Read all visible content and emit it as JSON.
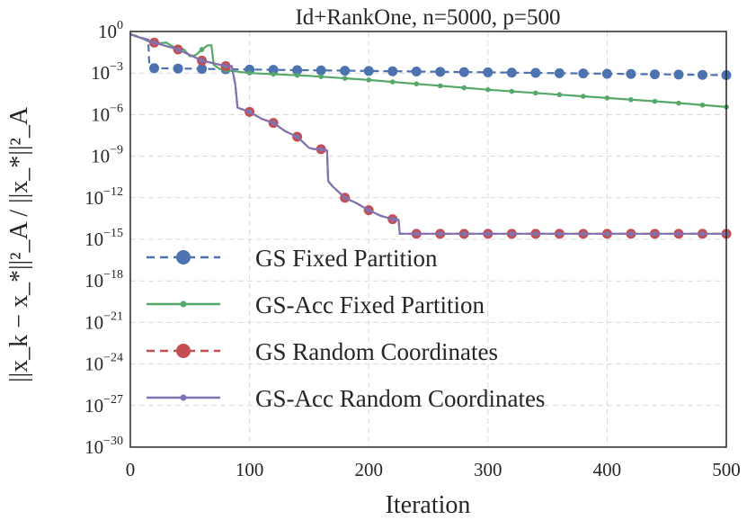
{
  "chart_data": {
    "type": "line",
    "title": "Id+RankOne, n=5000, p=500",
    "xlabel": "Iteration",
    "ylabel": "||x_k − x_*||²_A / ||x_*||²_A",
    "yscale": "log",
    "xlim": [
      0,
      500
    ],
    "ylim_exponent": [
      -30,
      0
    ],
    "grid": true,
    "legend_position": "lower-left",
    "x_ticks": [
      {
        "value": 0,
        "label": "0"
      },
      {
        "value": 100,
        "label": "100"
      },
      {
        "value": 200,
        "label": "200"
      },
      {
        "value": 300,
        "label": "300"
      },
      {
        "value": 400,
        "label": "400"
      },
      {
        "value": 500,
        "label": "500"
      }
    ],
    "y_ticks": [
      {
        "exp": 0,
        "base": "10",
        "sup": "0"
      },
      {
        "exp": -3,
        "base": "10",
        "sup": "−3"
      },
      {
        "exp": -6,
        "base": "10",
        "sup": "−6"
      },
      {
        "exp": -9,
        "base": "10",
        "sup": "−9"
      },
      {
        "exp": -12,
        "base": "10",
        "sup": "−12"
      },
      {
        "exp": -15,
        "base": "10",
        "sup": "−15"
      },
      {
        "exp": -18,
        "base": "10",
        "sup": "−18"
      },
      {
        "exp": -21,
        "base": "10",
        "sup": "−21"
      },
      {
        "exp": -24,
        "base": "10",
        "sup": "−24"
      },
      {
        "exp": -27,
        "base": "10",
        "sup": "−27"
      },
      {
        "exp": -30,
        "base": "10",
        "sup": "−30"
      }
    ],
    "series": [
      {
        "name": "GS Fixed Partition",
        "color": "#4c72b0",
        "style": "dashed",
        "marker": "large-circle",
        "marker_every": 20,
        "x": [
          0,
          15,
          16,
          20,
          100,
          300,
          500
        ],
        "log10y": [
          -0.2,
          -0.6,
          -2.6,
          -2.65,
          -2.75,
          -2.95,
          -3.15
        ]
      },
      {
        "name": "GS-Acc Fixed Partition",
        "color": "#55a868",
        "style": "solid",
        "marker": "small-circle",
        "marker_every": 20,
        "x": [
          0,
          10,
          20,
          30,
          40,
          45,
          50,
          55,
          60,
          65,
          68,
          70,
          75,
          80,
          100,
          150,
          200,
          250,
          300,
          350,
          400,
          450,
          500
        ],
        "log10y": [
          -0.2,
          -0.5,
          -0.9,
          -0.8,
          -1.3,
          -1.3,
          -1.8,
          -1.7,
          -1.3,
          -1.0,
          -1.0,
          -2.4,
          -2.7,
          -2.8,
          -3.0,
          -3.2,
          -3.5,
          -3.85,
          -4.2,
          -4.5,
          -4.8,
          -5.1,
          -5.45
        ]
      },
      {
        "name": "GS Random Coordinates",
        "color": "#c44e52",
        "style": "dashed",
        "marker": "large-circle",
        "marker_every": 20,
        "x": [
          0,
          20,
          40,
          60,
          80,
          85,
          88,
          90,
          100,
          110,
          120,
          130,
          140,
          150,
          155,
          160,
          165,
          166,
          170,
          180,
          190,
          200,
          210,
          220,
          225,
          226,
          230,
          240,
          500
        ],
        "log10y": [
          -0.2,
          -0.8,
          -1.3,
          -2.1,
          -2.5,
          -2.5,
          -3.8,
          -5.5,
          -5.8,
          -6.3,
          -6.6,
          -7.2,
          -7.6,
          -8.4,
          -8.5,
          -8.5,
          -8.6,
          -10.8,
          -11.2,
          -12.0,
          -12.4,
          -12.9,
          -13.3,
          -13.55,
          -13.6,
          -14.6,
          -14.6,
          -14.6,
          -14.6
        ]
      },
      {
        "name": "GS-Acc Random Coordinates",
        "color": "#8172b2",
        "style": "solid",
        "marker": "small-circle",
        "marker_every": 20,
        "x": [
          0,
          20,
          40,
          60,
          80,
          85,
          88,
          90,
          100,
          110,
          120,
          130,
          140,
          150,
          155,
          160,
          165,
          166,
          170,
          180,
          190,
          200,
          210,
          220,
          225,
          226,
          230,
          240,
          500
        ],
        "log10y": [
          -0.2,
          -0.8,
          -1.3,
          -2.1,
          -2.5,
          -2.5,
          -3.8,
          -5.5,
          -5.8,
          -6.3,
          -6.6,
          -7.2,
          -7.6,
          -8.4,
          -8.5,
          -8.5,
          -8.6,
          -10.8,
          -11.2,
          -12.0,
          -12.4,
          -12.9,
          -13.3,
          -13.55,
          -13.6,
          -14.6,
          -14.6,
          -14.6,
          -14.6
        ]
      }
    ]
  }
}
